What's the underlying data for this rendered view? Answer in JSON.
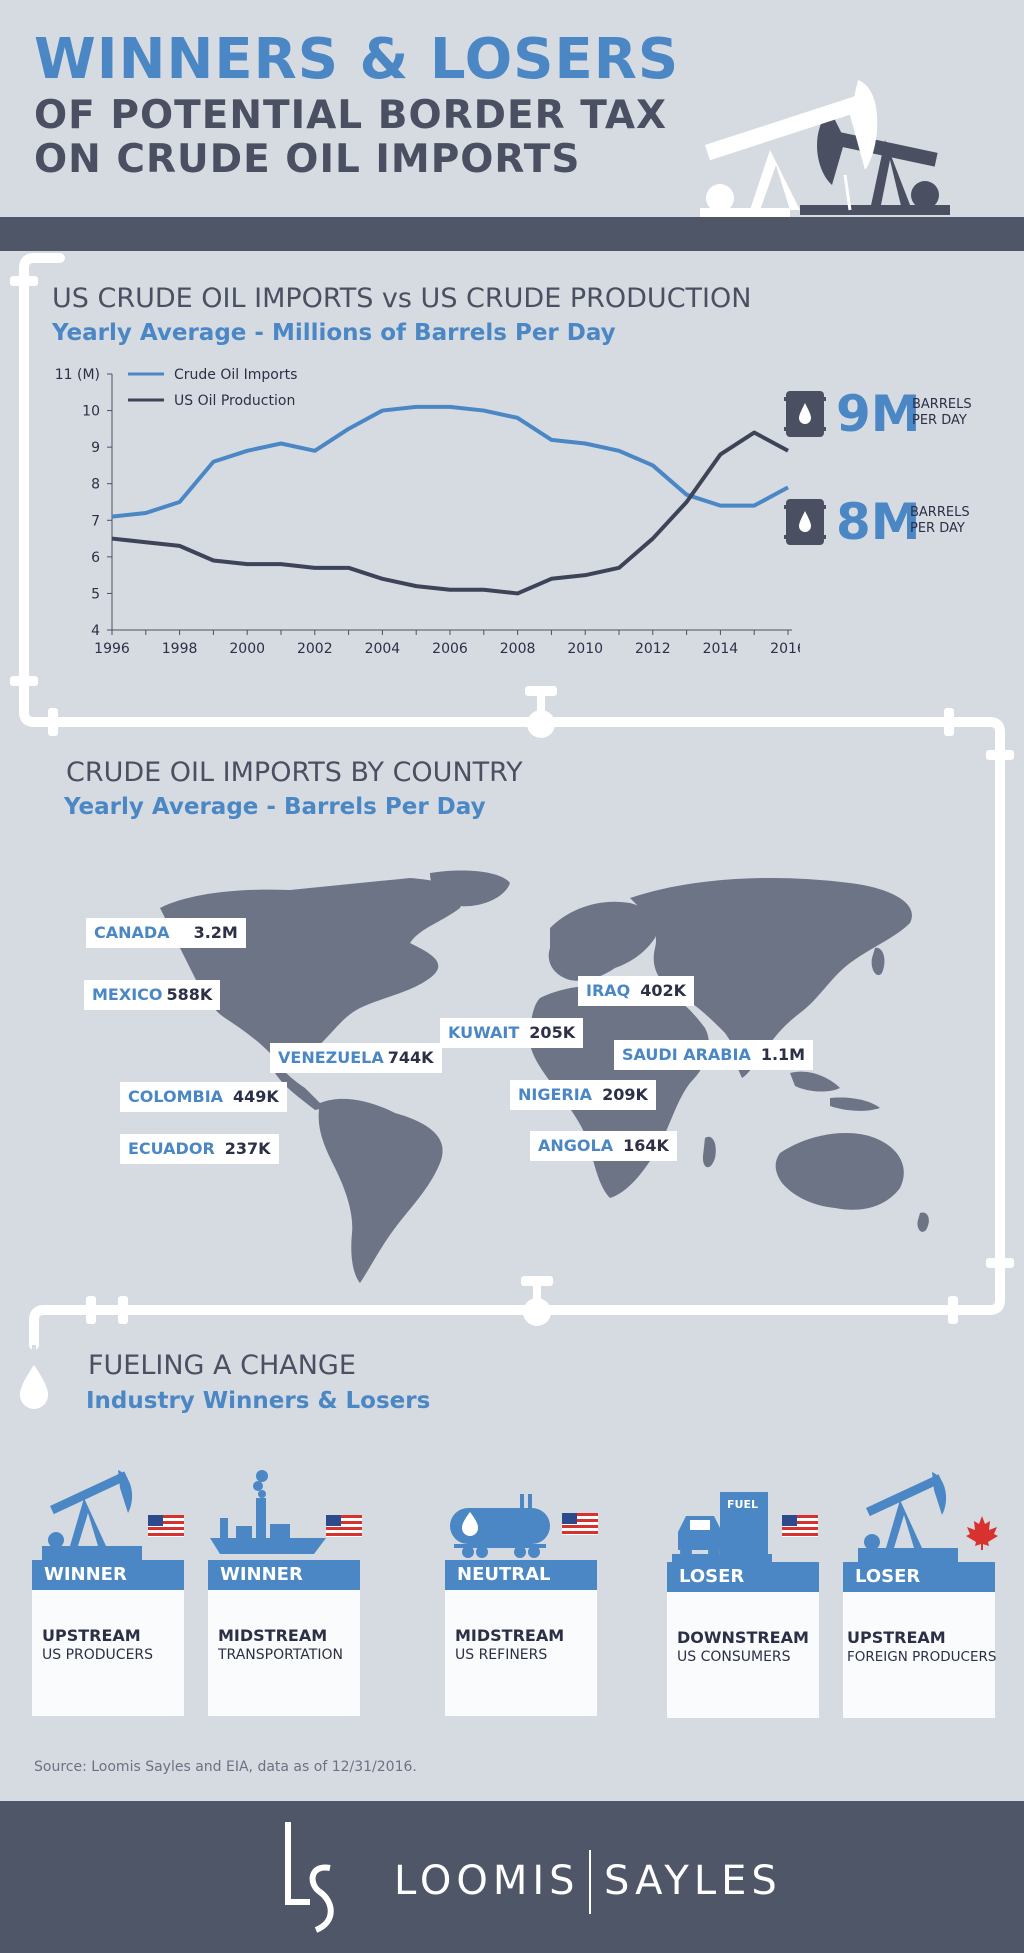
{
  "header": {
    "title_line1": "WINNERS & LOSERS",
    "title_line2": "OF POTENTIAL BORDER TAX",
    "title_line3": "ON CRUDE OIL IMPORTS"
  },
  "colors": {
    "blue": "#4a87c4",
    "dark": "#3e4458",
    "background": "#d6dbe2",
    "band": "#4e5668"
  },
  "section1": {
    "title": "US CRUDE OIL IMPORTS vs US CRUDE PRODUCTION",
    "subtitle": "Yearly Average - Millions of Barrels Per Day",
    "stat1": {
      "value": "9M",
      "unit_line1": "BARRELS",
      "unit_line2": "PER DAY"
    },
    "stat2": {
      "value": "8M",
      "unit_line1": "BARRELS",
      "unit_line2": "PER DAY"
    }
  },
  "chart_data": {
    "type": "line",
    "ylabel": "",
    "xlabel": "",
    "ylim": [
      4,
      11
    ],
    "y_ticks": [
      "11 (M)",
      "10",
      "9",
      "8",
      "7",
      "6",
      "5",
      "4"
    ],
    "x_ticks": [
      "1996",
      "1998",
      "2000",
      "2002",
      "2004",
      "2006",
      "2008",
      "2010",
      "2012",
      "2014",
      "2016"
    ],
    "x": [
      1996,
      1997,
      1998,
      1999,
      2000,
      2001,
      2002,
      2003,
      2004,
      2005,
      2006,
      2007,
      2008,
      2009,
      2010,
      2011,
      2012,
      2013,
      2014,
      2015,
      2016
    ],
    "legend_position": "top-left",
    "series": [
      {
        "name": "Crude Oil Imports",
        "color": "#4a87c4",
        "values": [
          7.1,
          7.2,
          7.5,
          8.6,
          8.9,
          9.1,
          8.9,
          9.5,
          10.0,
          10.1,
          10.1,
          10.0,
          9.8,
          9.2,
          9.1,
          8.9,
          8.5,
          7.7,
          7.4,
          7.4,
          7.9
        ]
      },
      {
        "name": "US Oil Production",
        "color": "#3e4458",
        "values": [
          6.5,
          6.4,
          6.3,
          5.9,
          5.8,
          5.8,
          5.7,
          5.7,
          5.4,
          5.2,
          5.1,
          5.1,
          5.0,
          5.4,
          5.5,
          5.7,
          6.5,
          7.5,
          8.8,
          9.4,
          8.9
        ]
      }
    ]
  },
  "section2": {
    "title": "CRUDE OIL IMPORTS BY COUNTRY",
    "subtitle": "Yearly Average - Barrels Per Day",
    "countries": [
      {
        "name": "CANADA",
        "value": "3.2M"
      },
      {
        "name": "MEXICO",
        "value": "588K"
      },
      {
        "name": "VENEZUELA",
        "value": "744K"
      },
      {
        "name": "COLOMBIA",
        "value": "449K"
      },
      {
        "name": "ECUADOR",
        "value": "237K"
      },
      {
        "name": "IRAQ",
        "value": "402K"
      },
      {
        "name": "KUWAIT",
        "value": "205K"
      },
      {
        "name": "SAUDI ARABIA",
        "value": "1.1M"
      },
      {
        "name": "NIGERIA",
        "value": "209K"
      },
      {
        "name": "ANGOLA",
        "value": "164K"
      }
    ]
  },
  "section3": {
    "title": "FUELING A CHANGE",
    "subtitle": "Industry Winners & Losers",
    "cards": [
      {
        "status": "WINNER",
        "line1": "UPSTREAM",
        "line2": "US PRODUCERS",
        "icon": "pumpjack-icon",
        "flag": "us-flag"
      },
      {
        "status": "WINNER",
        "line1": "MIDSTREAM",
        "line2": "TRANSPORTATION",
        "icon": "ship-factory-icon",
        "flag": "us-flag"
      },
      {
        "status": "NEUTRAL",
        "line1": "MIDSTREAM",
        "line2": "US REFINERS",
        "icon": "tanker-icon",
        "flag": "us-flag"
      },
      {
        "status": "LOSER",
        "line1": "DOWNSTREAM",
        "line2": "US CONSUMERS",
        "icon": "fuel-pump-car-icon",
        "flag": "us-flag",
        "icon_label": "FUEL"
      },
      {
        "status": "LOSER",
        "line1": "UPSTREAM",
        "line2": "FOREIGN PRODUCERS",
        "icon": "pumpjack-icon",
        "flag": "canada-flag"
      }
    ]
  },
  "source": "Source: Loomis Sayles and EIA, data as of 12/31/2016.",
  "footer": {
    "brand_left": "LOOMIS",
    "brand_right": "SAYLES",
    "logo_mark": "LS"
  }
}
